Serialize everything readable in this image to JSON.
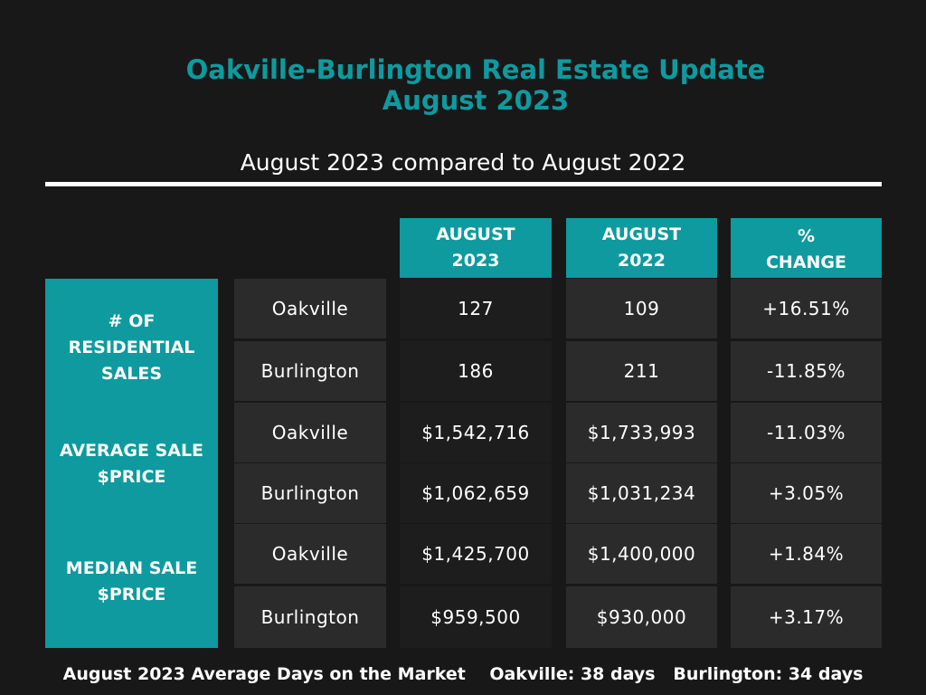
{
  "title_line1": "Oakville-Burlington Real Estate Update",
  "title_line2": "August 2023",
  "subtitle": "August  2023 compared to August 2022",
  "headers": {
    "col1_line1": "AUGUST",
    "col1_line2": "2023",
    "col2_line1": "AUGUST",
    "col2_line2": "2022",
    "col3_line1": "%",
    "col3_line2": "CHANGE"
  },
  "categories": {
    "sales": [
      "# OF",
      "RESIDENTIAL",
      "SALES"
    ],
    "average": [
      "AVERAGE SALE",
      "$PRICE"
    ],
    "median": [
      "MEDIAN SALE",
      "$PRICE"
    ]
  },
  "rows": [
    {
      "city": "Oakville",
      "aug2023": "127",
      "aug2022": "109",
      "change": "+16.51%"
    },
    {
      "city": "Burlington",
      "aug2023": "186",
      "aug2022": "211",
      "change": "-11.85%"
    },
    {
      "city": "Oakville",
      "aug2023": "$1,542,716",
      "aug2022": "$1,733,993",
      "change": "-11.03%"
    },
    {
      "city": "Burlington",
      "aug2023": "$1,062,659",
      "aug2022": "$1,031,234",
      "change": "+3.05%"
    },
    {
      "city": "Oakville",
      "aug2023": "$1,425,700",
      "aug2022": "$1,400,000",
      "change": "+1.84%"
    },
    {
      "city": "Burlington",
      "aug2023": "$959,500",
      "aug2022": "$930,000",
      "change": "+3.17%"
    }
  ],
  "footer": "August 2023 Average Days on the Market    Oakville: 38 days   Burlington: 34 days",
  "colors": {
    "accent": "#0e9a9f",
    "background": "#181818",
    "cell": "#2b2b2b"
  }
}
